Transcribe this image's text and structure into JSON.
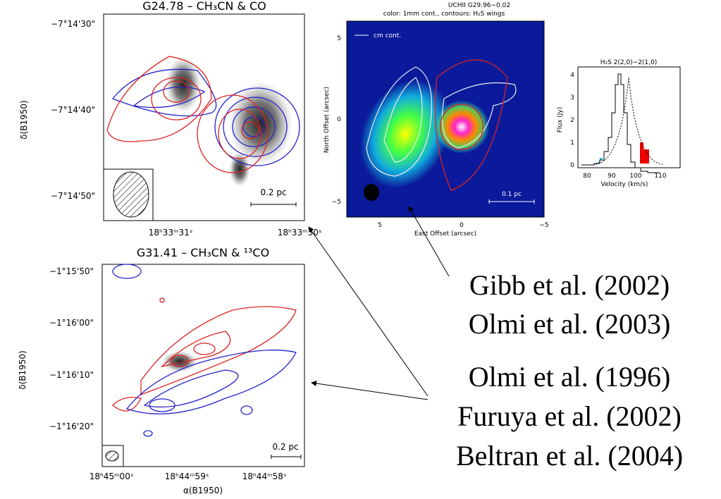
{
  "panels": [
    {
      "title": "G24.78 – CH₃CN & CO",
      "y_label": "δ(B1950)",
      "y_ticks": [
        "−7°14'30\"",
        "−7°14'40\"",
        "−7°14'50\""
      ],
      "x_ticks": [
        "18ʰ33ᵐ31ˢ",
        "18ʰ33ᵐ30ˢ"
      ],
      "scale": "0.2 pc"
    },
    {
      "title": "UCHII G29.96−0.02",
      "subtitle": "color: 1mm cont., contours: H₂S wings",
      "legend": "cm cont.",
      "y_label": "North Offset (arcsec)",
      "x_label": "East Offset (arcsec)",
      "y_ticks": [
        "5",
        "0",
        "−5"
      ],
      "x_ticks": [
        "5",
        "0",
        "−5"
      ],
      "scale": "0.1 pc"
    },
    {
      "title": "H₂S 2(2,0)−2(1,0)",
      "y_label": "Flux (Jy)",
      "x_label": "Velocity (km/s)",
      "y_ticks": [
        "0",
        "1",
        "2",
        "3",
        "4"
      ],
      "x_ticks": [
        "80",
        "90",
        "100",
        "110"
      ]
    },
    {
      "title": "G31.41 – CH₃CN & ¹³CO",
      "y_label": "δ(B1950)",
      "x_label": "α(B1950)",
      "y_ticks": [
        "−1°15'50\"",
        "−1°16'00\"",
        "−1°16'10\"",
        "−1°16'20\""
      ],
      "x_ticks": [
        "18ʰ45ᵐ00ˢ",
        "18ʰ44ᵐ59ˢ",
        "18ʰ44ᵐ58ˢ"
      ],
      "scale": "0.2 pc"
    }
  ],
  "references": [
    "Gibb et al. (2002)",
    "Olmi et al. (2003)",
    "Olmi et al. (1996)",
    "Furuya et al. (2002)",
    "Beltran et al. (2004)"
  ]
}
